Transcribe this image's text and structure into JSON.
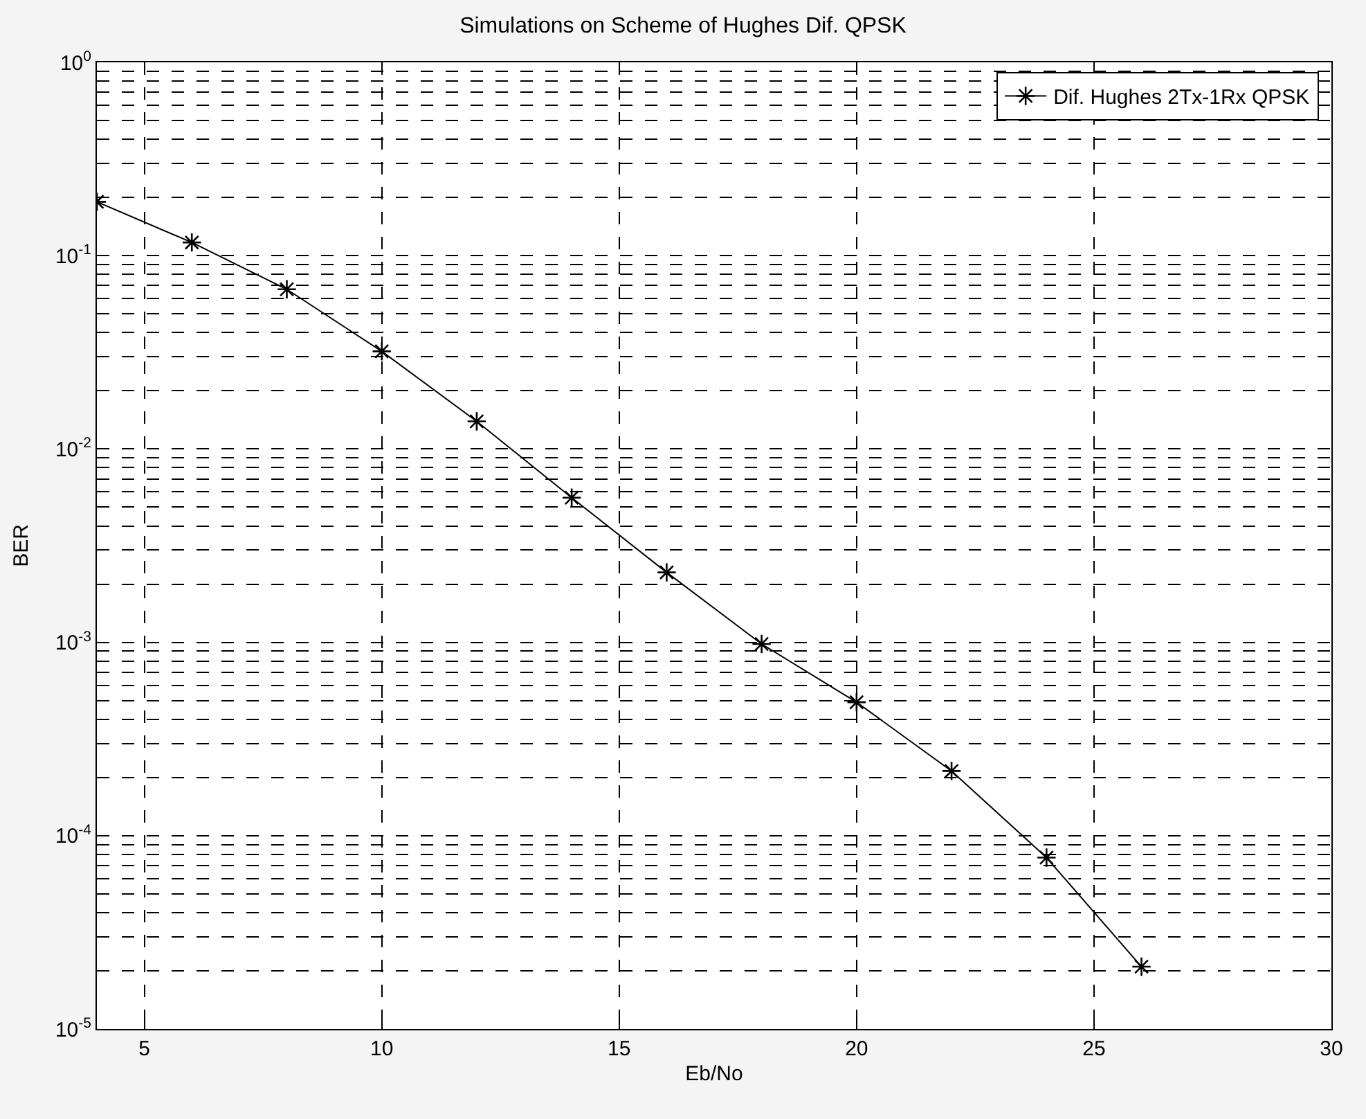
{
  "chart_data": {
    "type": "line",
    "title": "Simulations on Scheme of Hughes Dif. QPSK",
    "xlabel": "Eb/No",
    "ylabel": "BER",
    "x": [
      4,
      6,
      8,
      10,
      12,
      14,
      16,
      18,
      20,
      22,
      24,
      26
    ],
    "series": [
      {
        "name": "Dif. Hughes 2Tx-1Rx QPSK",
        "color": "#000000",
        "values": [
          0.19,
          0.117,
          0.067,
          0.032,
          0.0139,
          0.0056,
          0.0023,
          0.00098,
          0.00049,
          0.000216,
          7.7e-05,
          2.1e-05
        ]
      }
    ],
    "log": "y",
    "xlim": [
      4,
      30
    ],
    "xticks": [
      5,
      10,
      15,
      20,
      25,
      30
    ],
    "ylim": [
      1e-05,
      1
    ],
    "yticks": [
      {
        "value": 1,
        "label": "10$^{0}$"
      },
      {
        "value": 0.1,
        "label": "10$^{-1}$"
      },
      {
        "value": 0.01,
        "label": "10$^{-2}$"
      },
      {
        "value": 0.001,
        "label": "10$^{-3}$"
      },
      {
        "value": 0.0001,
        "label": "10$^{-4}$"
      },
      {
        "value": 1e-05,
        "label": "10$^{-5}$"
      }
    ],
    "grid": true,
    "legend": "top right",
    "marker": "cross",
    "line_style": "solid"
  }
}
